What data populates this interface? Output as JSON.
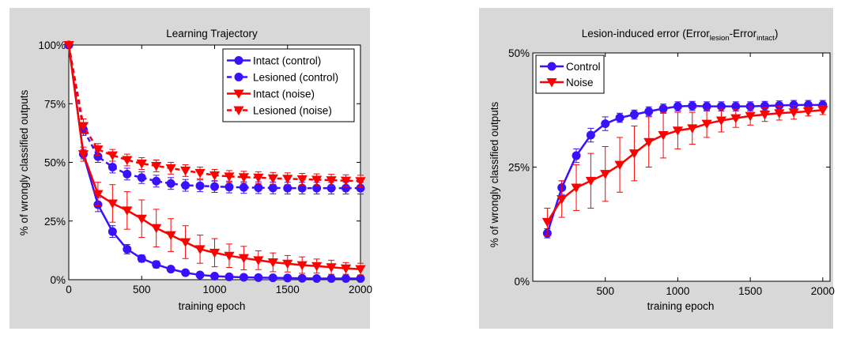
{
  "chart_data": [
    {
      "type": "line",
      "title": "Learning Trajectory",
      "xlabel": "training epoch",
      "ylabel": "% of wrongly classified outputs",
      "xlim": [
        0,
        2000
      ],
      "ylim": [
        0,
        100
      ],
      "xticks": [
        0,
        500,
        1000,
        1500,
        2000
      ],
      "xtick_labels": [
        "0",
        "500",
        "1000",
        "1500",
        "2000"
      ],
      "yticks": [
        0,
        25,
        50,
        75,
        100
      ],
      "ytick_labels": [
        "0%",
        "25%",
        "50%",
        "75%",
        "100%"
      ],
      "grid": false,
      "legend_position": "top-right",
      "x": [
        0,
        100,
        200,
        300,
        400,
        500,
        600,
        700,
        800,
        900,
        1000,
        1100,
        1200,
        1300,
        1400,
        1500,
        1600,
        1700,
        1800,
        1900,
        2000
      ],
      "series": [
        {
          "name": "Intact (control)",
          "color": "#3a10ff",
          "line": "solid",
          "marker": "circle",
          "values": [
            100,
            53.5,
            32,
            20.5,
            13,
            9,
            6.5,
            4.5,
            3,
            2,
            1.5,
            1.2,
            1,
            0.9,
            0.8,
            0.7,
            0.6,
            0.5,
            0.5,
            0.5,
            0.5
          ],
          "errors": [
            0,
            2,
            3,
            2.5,
            2,
            1.5,
            1.5,
            1,
            1,
            0.8,
            0.8,
            0.5,
            0.5,
            0.5,
            0.5,
            0.5,
            0.5,
            0.5,
            0.5,
            0.5,
            0.5
          ]
        },
        {
          "name": "Lesioned (control)",
          "color": "#3a10ff",
          "line": "dashed",
          "marker": "circle",
          "values": [
            100,
            64,
            52.5,
            48,
            45,
            43.5,
            42,
            41,
            40.2,
            40,
            39.7,
            39.5,
            39.3,
            39.2,
            39.1,
            39,
            39,
            39,
            39,
            39,
            39
          ],
          "errors": [
            0,
            2.5,
            2.5,
            2.5,
            2.5,
            2.5,
            2.5,
            2.5,
            2.5,
            2.5,
            2.5,
            2.5,
            2.5,
            2.5,
            2.5,
            2.5,
            2.5,
            2.5,
            2.5,
            2.5,
            2.5
          ]
        },
        {
          "name": "Intact (noise)",
          "color": "#ff0000",
          "line": "solid",
          "marker": "triangle-down",
          "values": [
            100,
            53.5,
            36.5,
            32.5,
            29.5,
            26,
            22,
            19,
            16,
            13,
            11.5,
            10.2,
            9.2,
            8.3,
            7.4,
            6.8,
            6.2,
            5.8,
            5.3,
            4.8,
            4.5
          ],
          "errors": [
            0,
            3,
            5,
            8,
            8,
            8,
            8,
            7,
            7,
            6,
            6,
            5,
            5,
            4,
            4,
            3.5,
            3.5,
            3,
            3,
            2.5,
            2.5
          ]
        },
        {
          "name": "Lesioned (noise)",
          "color": "#ff0000",
          "line": "dashed",
          "marker": "triangle-down",
          "values": [
            100,
            65.5,
            55.5,
            53,
            51,
            49.5,
            48.5,
            47.5,
            46.5,
            45.5,
            44.5,
            44,
            43.7,
            43.5,
            43.2,
            43,
            42.8,
            42.6,
            42.4,
            42.2,
            42
          ],
          "errors": [
            0,
            3,
            2.5,
            2.5,
            2.5,
            2.5,
            2.5,
            2.5,
            2.5,
            2.5,
            2.5,
            2.5,
            2.5,
            2.5,
            2.5,
            2.5,
            2.5,
            2.5,
            2.5,
            2.5,
            2.5
          ]
        }
      ]
    },
    {
      "type": "line",
      "title": "Lesion-induced error (Error",
      "title_sub1": "lesion",
      "title_mid": "-Error",
      "title_sub2": "intact",
      "title_end": ")",
      "xlabel": "training epoch",
      "ylabel": "% of wrongly classified outputs",
      "xlim": [
        0,
        2050
      ],
      "ylim": [
        0,
        50
      ],
      "xticks": [
        500,
        1000,
        1500,
        2000
      ],
      "xtick_labels": [
        "500",
        "1000",
        "1500",
        "2000"
      ],
      "yticks": [
        0,
        25,
        50
      ],
      "ytick_labels": [
        "0%",
        "25%",
        "50%"
      ],
      "grid": false,
      "legend_position": "top-left",
      "x": [
        100,
        200,
        300,
        400,
        500,
        600,
        700,
        800,
        900,
        1000,
        1100,
        1200,
        1300,
        1400,
        1500,
        1600,
        1700,
        1800,
        1900,
        2000
      ],
      "series": [
        {
          "name": "Control",
          "color": "#3a10ff",
          "line": "solid",
          "marker": "circle",
          "values": [
            10.5,
            20.5,
            27.5,
            32,
            34.5,
            35.8,
            36.5,
            37.2,
            37.8,
            38.3,
            38.4,
            38.3,
            38.3,
            38.3,
            38.3,
            38.4,
            38.5,
            38.6,
            38.6,
            38.6
          ],
          "errors": [
            1,
            1.5,
            1.5,
            1.5,
            1.5,
            1,
            1,
            1,
            1,
            1,
            1,
            1,
            1,
            1,
            1,
            1,
            1,
            1,
            1,
            1
          ]
        },
        {
          "name": "Noise",
          "color": "#ff0000",
          "line": "solid",
          "marker": "triangle-down",
          "values": [
            13,
            18,
            20.5,
            22,
            23.5,
            25.5,
            28,
            30.5,
            32,
            33,
            33.5,
            34.5,
            35.2,
            35.7,
            36.2,
            36.5,
            36.8,
            37,
            37.2,
            37.5
          ],
          "errors": [
            3,
            4,
            5,
            6,
            6,
            6,
            6,
            5.5,
            5,
            4,
            3.5,
            3,
            2.5,
            2,
            2,
            1.5,
            1.5,
            1.5,
            1,
            1
          ]
        }
      ]
    }
  ]
}
